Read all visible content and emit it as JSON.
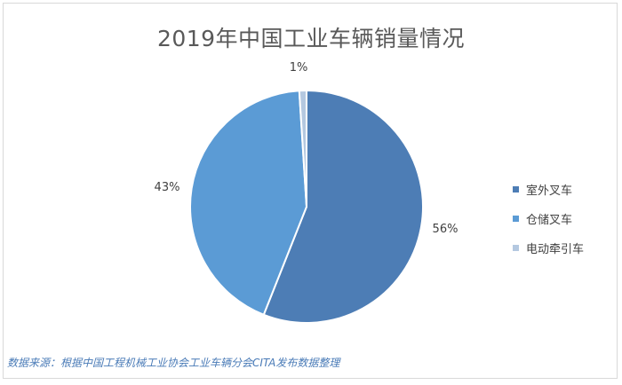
{
  "chart_data": {
    "type": "pie",
    "title": "2019年中国工业车辆销量情况",
    "categories": [
      "室外叉车",
      "仓储叉车",
      "电动牵引车"
    ],
    "values": [
      56,
      43,
      1
    ],
    "labels": [
      "56%",
      "43%",
      "1%"
    ],
    "colors": [
      "#4d7db5",
      "#5b9bd5",
      "#b4c8e0"
    ],
    "legend_position": "right"
  },
  "source": "数据来源：根据中国工程机械工业协会工业车辆分会CITA发布数据整理"
}
